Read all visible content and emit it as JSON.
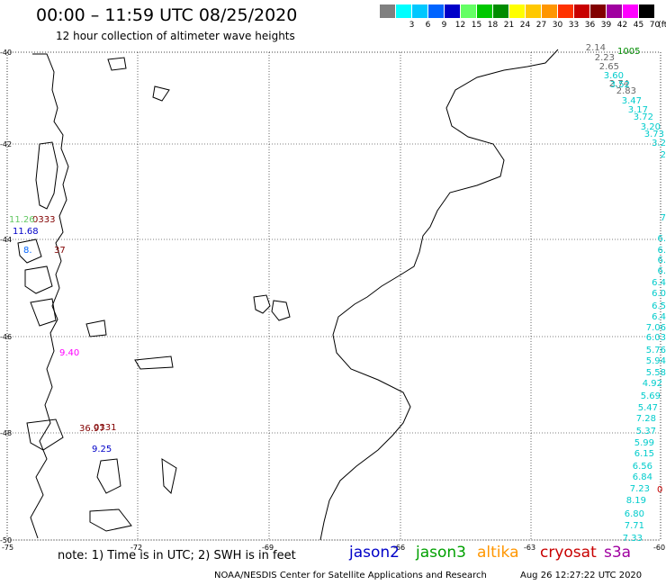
{
  "title": "00:00 – 11:59 UTC 08/25/2020",
  "subtitle": "12 hour collection of altimeter wave heights",
  "scale": {
    "unit": "(ft)",
    "bins": [
      {
        "label": "",
        "color": "#808080"
      },
      {
        "label": "3",
        "color": "#00ffff"
      },
      {
        "label": "6",
        "color": "#00c8ff"
      },
      {
        "label": "9",
        "color": "#0064ff"
      },
      {
        "label": "12",
        "color": "#0000c8"
      },
      {
        "label": "15",
        "color": "#64ff64"
      },
      {
        "label": "18",
        "color": "#00c800"
      },
      {
        "label": "21",
        "color": "#008c00"
      },
      {
        "label": "24",
        "color": "#ffff00"
      },
      {
        "label": "27",
        "color": "#ffc800"
      },
      {
        "label": "30",
        "color": "#ff9600"
      },
      {
        "label": "33",
        "color": "#ff3200"
      },
      {
        "label": "36",
        "color": "#c80000"
      },
      {
        "label": "39",
        "color": "#820000"
      },
      {
        "label": "42",
        "color": "#a000a0"
      },
      {
        "label": "45",
        "color": "#ff00ff"
      },
      {
        "label": "70",
        "color": "#000000"
      }
    ]
  },
  "axes": {
    "lon_labels": [
      "-75",
      "-72",
      "-69",
      "-66",
      "-63",
      "-60"
    ],
    "lat_labels": [
      "-40",
      "-42",
      "-44",
      "-46",
      "-48",
      "-50"
    ]
  },
  "tracks": [
    {
      "name": "east",
      "color_label": "#00cccc",
      "values": [
        "3.60",
        "3.52",
        "3.47",
        "3.17",
        "3.72",
        "3.20",
        "3.73",
        "3.2",
        "2",
        "7",
        "6.",
        "6.",
        "6.",
        "6.",
        "6.4",
        "6.0",
        "6.5",
        "6.4",
        "7.06",
        "6.03",
        "5.76",
        "5.94",
        "5.58",
        "4.92",
        "5.69",
        "5.47",
        "7.28",
        "5.37",
        "5.99",
        "6.15",
        "6.56",
        "6.84",
        "7.23",
        "8.19",
        "6.80",
        "7.71",
        "7.33"
      ]
    },
    {
      "name": "east-top",
      "color_label": "#666666",
      "values": [
        "2.14",
        "2.23",
        "2.65",
        "2.74",
        "2.83"
      ]
    }
  ],
  "pass_labels": [
    {
      "text": "1005",
      "color": "#008c00"
    },
    {
      "text": "0333",
      "color": "#820000"
    },
    {
      "text": "0331",
      "color": "#820000"
    },
    {
      "text": "0",
      "color": "#c80000"
    }
  ],
  "west_labels": [
    {
      "text": "11.26",
      "color": "#64c864"
    },
    {
      "text": "11.68",
      "color": "#0000c8"
    },
    {
      "text": "8.",
      "color": "#0064ff"
    },
    {
      "text": "37",
      "color": "#820000"
    },
    {
      "text": "9.40",
      "color": "#ff00ff"
    },
    {
      "text": "36.97",
      "color": "#820000"
    },
    {
      "text": "9.25",
      "color": "#0000c8"
    }
  ],
  "note": "note: 1) Time is in UTC; 2) SWH is in feet",
  "legend": [
    {
      "label": "jason2",
      "color": "#0000c8"
    },
    {
      "label": "jason3",
      "color": "#00a000"
    },
    {
      "label": "altika",
      "color": "#ff9600"
    },
    {
      "label": "cryosat",
      "color": "#c80000"
    },
    {
      "label": "s3a",
      "color": "#a000a0"
    }
  ],
  "footer_left": "NOAA/NESDIS Center for Satellite Applications and Research",
  "footer_right": "Aug 26 12:27:22 UTC 2020"
}
